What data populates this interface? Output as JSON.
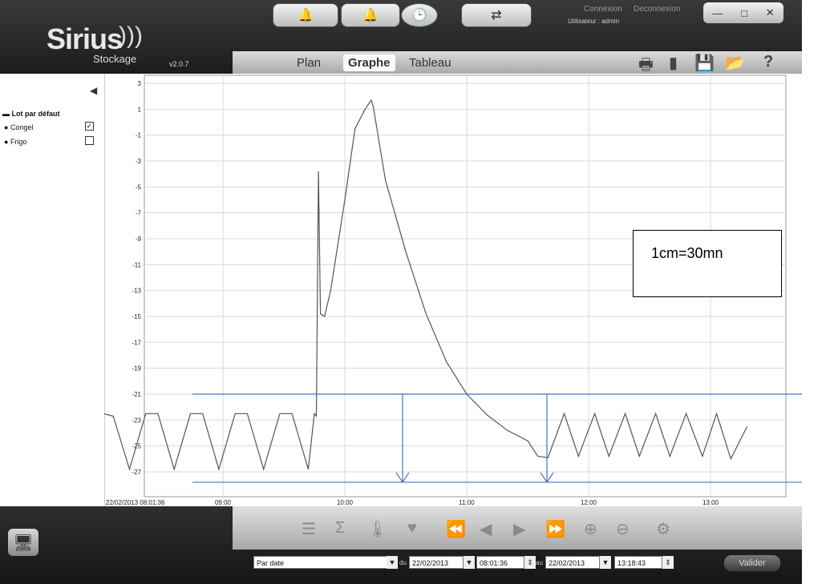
{
  "app": {
    "logo_main": "Sirius",
    "logo_sub": "Stockage",
    "version": "v2.0.7"
  },
  "header": {
    "top_buttons": [
      {
        "icon": "bell-icon",
        "glyph": "🔔"
      },
      {
        "icon": "bell-outline-icon",
        "glyph": "🔔"
      },
      {
        "icon": "clock-icon",
        "glyph": "🕒"
      },
      {
        "icon": "refresh-icon",
        "glyph": "⇄"
      }
    ],
    "connexion": "Connexion",
    "deconnexion": "Deconnexion",
    "user_text": "Utilisateur : admin",
    "tabs": [
      {
        "label": "Plan"
      },
      {
        "label": "Graphe"
      },
      {
        "label": "Tableau"
      }
    ],
    "tools": [
      "printer-icon",
      "book-icon",
      "save-icon",
      "open-folder-icon",
      "help-icon"
    ],
    "tool_glyphs": [
      "🖶",
      "▮",
      "💾",
      "📂",
      "?"
    ]
  },
  "left_panel": {
    "group_label": "Lot par défaut",
    "items": [
      {
        "label": "Congel",
        "checked": true,
        "check_mark": "✓"
      },
      {
        "label": "Frigo",
        "checked": false,
        "check_mark": ""
      }
    ]
  },
  "chart_data": {
    "type": "line",
    "y_ticks": [
      "3",
      "1",
      "-1",
      "-3",
      "-5",
      "-7",
      "-9",
      "-11",
      "-13",
      "-15",
      "-17",
      "-19",
      "-21",
      "-23",
      "-25",
      "-27"
    ],
    "ylim": [
      -28,
      3
    ],
    "x_start_label": "22/02/2013 08:01:36",
    "x_ticks": [
      "09:00",
      "10:00",
      "11:00",
      "12:00",
      "13:00"
    ],
    "series": [
      {
        "x": [
          "08:01",
          "08:06",
          "08:14",
          "08:22",
          "08:28",
          "08:36",
          "08:44",
          "08:50",
          "08:58",
          "09:06",
          "09:12",
          "09:20",
          "09:28",
          "09:34",
          "09:42",
          "09:45",
          "09:46",
          "09:47",
          "09:48",
          "09:50",
          "09:53",
          "10:00",
          "10:05",
          "10:10",
          "10:13",
          "10:14",
          "10:20",
          "10:30",
          "10:40",
          "10:50",
          "11:00",
          "11:10",
          "11:20",
          "11:30",
          "11:35",
          "11:40",
          "11:48",
          "11:55",
          "12:03",
          "12:10",
          "12:18",
          "12:25",
          "12:33",
          "12:40",
          "12:48",
          "12:56",
          "13:03",
          "13:10",
          "13:18"
        ],
        "y": [
          -22.5,
          -22.7,
          -26.8,
          -22.5,
          -22.5,
          -26.8,
          -22.5,
          -22.5,
          -26.8,
          -22.5,
          -22.5,
          -26.8,
          -22.5,
          -22.5,
          -26.8,
          -22.5,
          -22.7,
          -3.8,
          -14.8,
          -15,
          -13,
          -6,
          -0.5,
          1,
          1.7,
          1.2,
          -4.5,
          -10,
          -14.8,
          -18.5,
          -21,
          -22.6,
          -23.8,
          -24.6,
          -25.8,
          -25.9,
          -22.5,
          -25.8,
          -22.5,
          -25.8,
          -22.5,
          -25.8,
          -22.5,
          -25.8,
          -22.5,
          -25.8,
          -22.5,
          -26,
          -23.5
        ]
      }
    ]
  },
  "annotation": {
    "text": "1cm=30mn"
  },
  "controls": {
    "icons": [
      "list-icon",
      "sigma-icon",
      "thermometer-icon",
      "marker-icon",
      "fast-rewind-icon",
      "step-back-icon",
      "step-forward-icon",
      "fast-forward-icon",
      "zoom-in-icon",
      "zoom-out-icon",
      "settings-icon"
    ],
    "glyphs": [
      "☰",
      "Σ",
      "🌡",
      "♥",
      "⏪",
      "◀",
      "▶",
      "⏩",
      "⊕",
      "⊖",
      "⚙"
    ]
  },
  "date_bar": {
    "mode": "Par date",
    "du_label": "du",
    "date_from": "22/02/2013",
    "time_from": "08:01:36",
    "au_label": "au",
    "date_to": "22/02/2013",
    "time_to": "13:18:43",
    "valider": "Valider"
  },
  "colors": {
    "line": "#555555",
    "grid": "#d9d9d9",
    "annotation_lines": "#4472c4"
  }
}
